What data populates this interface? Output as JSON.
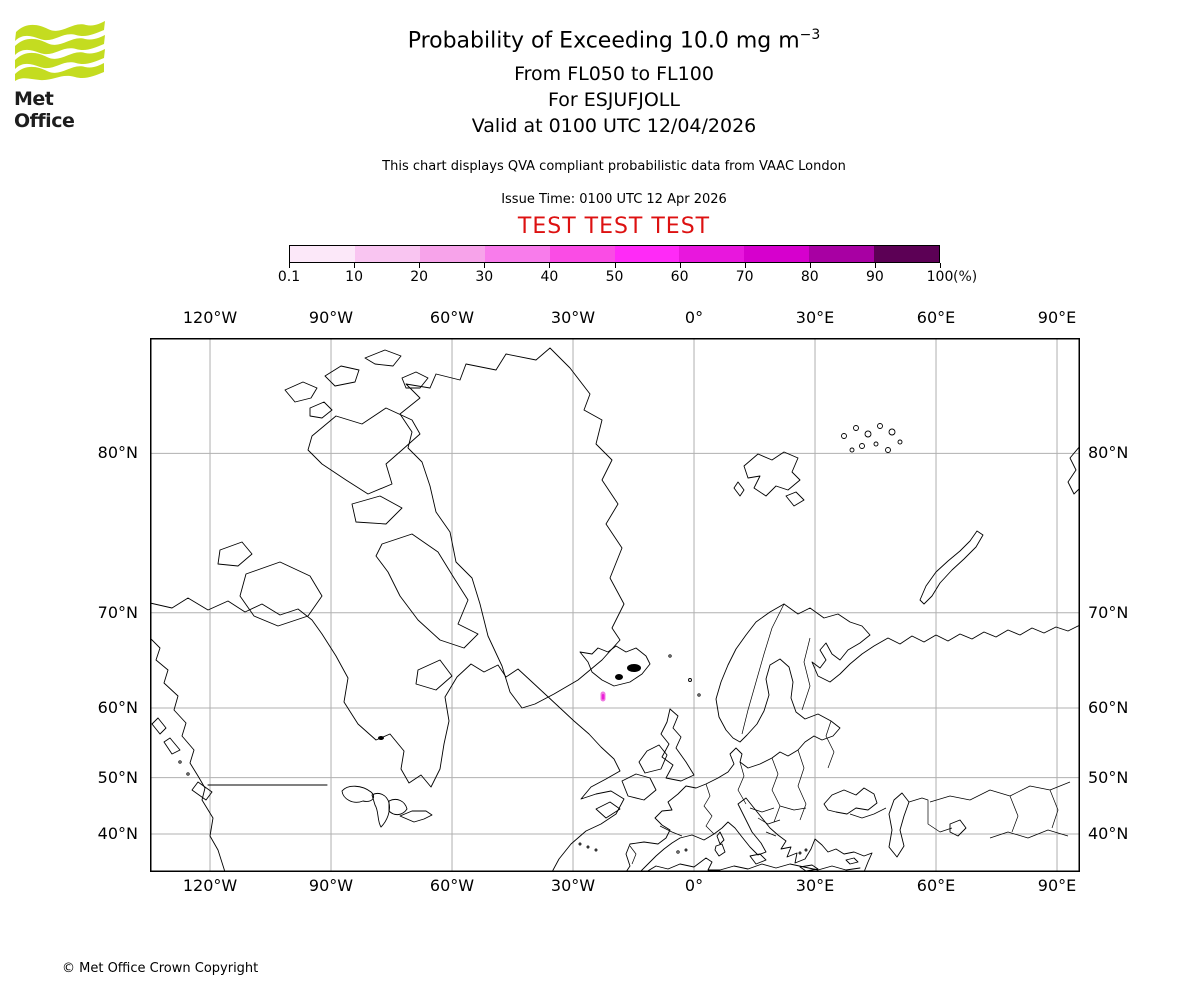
{
  "header": {
    "logo_text": "Met Office",
    "logo_color": "#c4dc20",
    "title_prefix": "Probability of Exceeding 10.0 mg m",
    "title_exponent": "−3",
    "subtitle_flight_levels": "From FL050 to FL100",
    "subtitle_volcano": "For ESJUFJOLL",
    "subtitle_valid": "Valid at 0100 UTC 12/04/2026",
    "compliance_note": "This chart displays QVA compliant probabilistic data from VAAC London",
    "issue_time": "Issue Time: 0100 UTC 12 Apr 2026",
    "test_banner": "TEST TEST TEST",
    "test_banner_color": "#dd1111"
  },
  "colorbar": {
    "tick_labels": [
      "0.1",
      "10",
      "20",
      "30",
      "40",
      "50",
      "60",
      "70",
      "80",
      "90",
      "100"
    ],
    "unit_label": "(%)",
    "colors": [
      "#fce8f9",
      "#f9c5f1",
      "#f7a3ea",
      "#f87ceb",
      "#fa4ce5",
      "#ff2af7",
      "#e817dd",
      "#d600cd",
      "#a800a3",
      "#5c0055"
    ]
  },
  "map": {
    "lon_ticks": [
      {
        "value": -120,
        "label": "120°W"
      },
      {
        "value": -90,
        "label": "90°W"
      },
      {
        "value": -60,
        "label": "60°W"
      },
      {
        "value": -30,
        "label": "30°W"
      },
      {
        "value": 0,
        "label": "0°"
      },
      {
        "value": 30,
        "label": "30°E"
      },
      {
        "value": 60,
        "label": "60°E"
      },
      {
        "value": 90,
        "label": "90°E"
      }
    ],
    "lat_ticks": [
      {
        "value": 80,
        "label": "80°N"
      },
      {
        "value": 70,
        "label": "70°N"
      },
      {
        "value": 60,
        "label": "60°N"
      },
      {
        "value": 50,
        "label": "50°N"
      },
      {
        "value": 40,
        "label": "40°N"
      }
    ],
    "gridline_color": "#b0b0b0",
    "coastline_color": "#000000"
  },
  "footer": {
    "copyright": "© Met Office Crown Copyright"
  },
  "chart_data": {
    "type": "heatmap",
    "subtype": "probability-exceedance-map",
    "title": "Probability of Exceeding 10.0 mg m⁻³",
    "layer": "FL050 to FL100",
    "volcano": "ESJUFJOLL",
    "valid_time": "0100 UTC 12/04/2026",
    "issue_time": "0100 UTC 12 Apr 2026",
    "source": "VAAC London",
    "unit": "%",
    "legend_position": "top",
    "scale_bin_edges": [
      0.1,
      10,
      20,
      30,
      40,
      50,
      60,
      70,
      80,
      90,
      100
    ],
    "scale_colors": [
      "#fce8f9",
      "#f9c5f1",
      "#f7a3ea",
      "#f87ceb",
      "#fa4ce5",
      "#ff2af7",
      "#e817dd",
      "#d600cd",
      "#a800a3",
      "#5c0055"
    ],
    "projection": "Mercator",
    "map_extent": {
      "lon_min": -134.9,
      "lon_max": 95.7,
      "lat_min": 32.3,
      "lat_max": 84.0
    },
    "grid": {
      "lon_step_deg": 30,
      "lat_step_deg": 10,
      "grid_on": true
    },
    "data_areas": [
      {
        "description": "single small low-probability ash plume area south of Iceland",
        "approx_lat": 61.4,
        "approx_lon": -22.6,
        "outer_color": "#f07ae2",
        "inner_color": "#ec1fd8"
      }
    ]
  }
}
